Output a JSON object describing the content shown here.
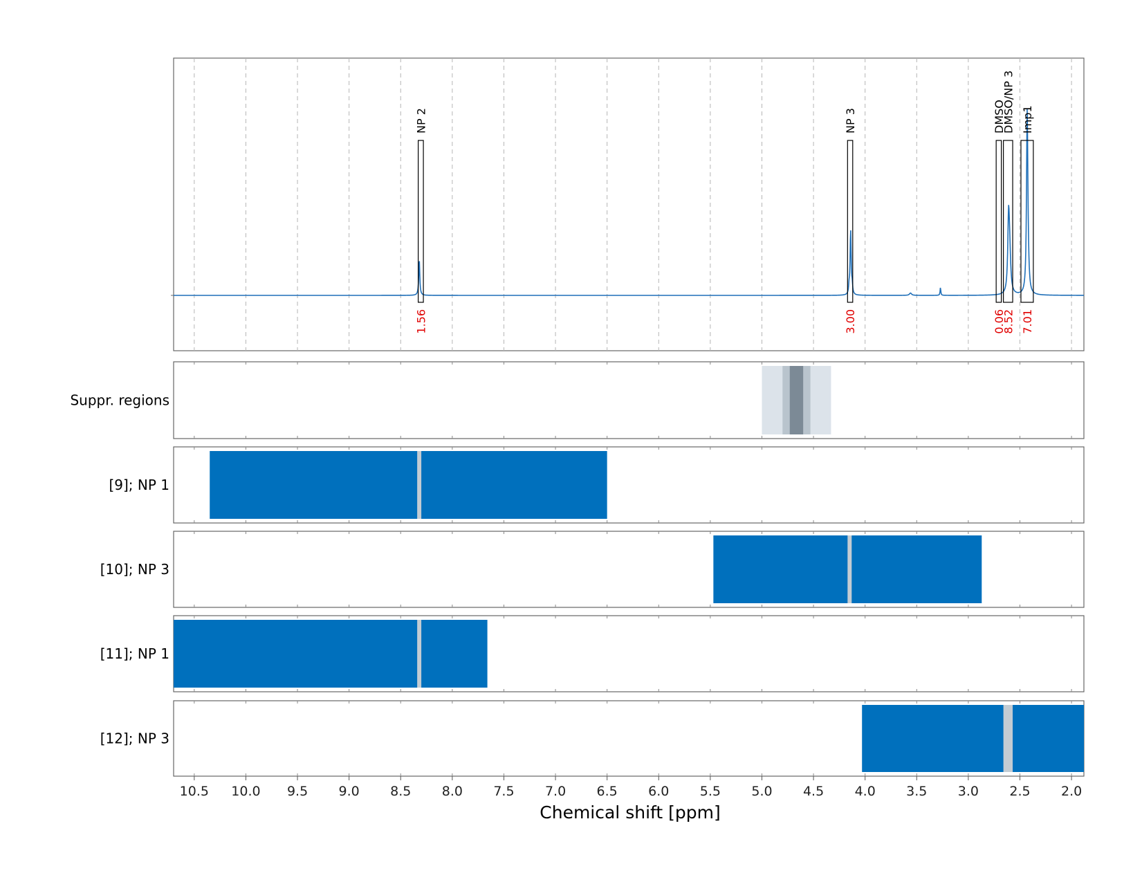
{
  "chart_data": {
    "type": "line",
    "xlabel": "Chemical shift [ppm]",
    "xlim": [
      10.7,
      1.88
    ],
    "x_reversed": true,
    "x_ticks": [
      10.5,
      10.0,
      9.5,
      9.0,
      8.5,
      8.0,
      7.5,
      7.0,
      6.5,
      6.0,
      5.5,
      5.0,
      4.5,
      4.0,
      3.5,
      3.0,
      2.5,
      2.0
    ],
    "x_tick_labels": [
      "10.5",
      "10.0",
      "9.5",
      "9.0",
      "8.5",
      "8.0",
      "7.5",
      "7.0",
      "6.5",
      "6.0",
      "5.5",
      "5.0",
      "4.5",
      "4.0",
      "3.5",
      "3.0",
      "2.5",
      "2.0"
    ],
    "grid": true,
    "line_color": "#1f6fb8",
    "spectrum_peaks": [
      {
        "x": 8.32,
        "height": 0.23,
        "width": 0.006
      },
      {
        "x": 4.14,
        "height": 0.41,
        "width": 0.006
      },
      {
        "x": 4.125,
        "height": 0.05,
        "width": 0.005
      },
      {
        "x": 4.155,
        "height": 0.05,
        "width": 0.005
      },
      {
        "x": 3.56,
        "height": 0.015,
        "width": 0.012
      },
      {
        "x": 3.27,
        "height": 0.05,
        "width": 0.004
      },
      {
        "x": 2.61,
        "height": 0.42,
        "width": 0.009
      },
      {
        "x": 2.6,
        "height": 0.25,
        "width": 0.012
      },
      {
        "x": 2.43,
        "height": 0.94,
        "width": 0.007
      },
      {
        "x": 2.425,
        "height": 0.3,
        "width": 0.01
      }
    ],
    "annotations": [
      {
        "label": "NP 2",
        "integral": "1.56",
        "from": 8.33,
        "to": 8.28,
        "box_top": 0.95
      },
      {
        "label": "NP 3",
        "integral": "3.00",
        "from": 4.17,
        "to": 4.12,
        "box_top": 0.95
      },
      {
        "label": "DMSO",
        "integral": "0.06",
        "from": 2.73,
        "to": 2.68,
        "box_top": 0.95
      },
      {
        "label": "DMSO/NP 3",
        "integral": "8.52",
        "from": 2.66,
        "to": 2.57,
        "box_top": 0.95
      },
      {
        "label": "Imp1",
        "integral": "7.01",
        "from": 2.49,
        "to": 2.37,
        "box_top": 0.95
      }
    ],
    "region_rows": [
      {
        "label": "Suppr. regions",
        "type": "suppression",
        "bands": [
          {
            "from": 5.0,
            "to": 4.33,
            "color": "#dce3ea"
          },
          {
            "from": 4.8,
            "to": 4.53,
            "color": "#b9c4cd"
          },
          {
            "from": 4.73,
            "to": 4.6,
            "color": "#7c8a96"
          }
        ]
      },
      {
        "label": "[9]; NP 1",
        "type": "region",
        "bands": [
          {
            "from": 10.35,
            "to": 6.5,
            "color": "#0070bd"
          }
        ],
        "marker": {
          "from": 8.34,
          "to": 8.3,
          "color": "#c3ccd3"
        }
      },
      {
        "label": "[10]; NP 3",
        "type": "region",
        "bands": [
          {
            "from": 5.47,
            "to": 2.87,
            "color": "#0070bd"
          }
        ],
        "marker": {
          "from": 4.17,
          "to": 4.13,
          "color": "#c3ccd3"
        }
      },
      {
        "label": "[11]; NP 1",
        "type": "region",
        "bands": [
          {
            "from": 10.7,
            "to": 7.66,
            "color": "#0070bd"
          }
        ],
        "marker": {
          "from": 8.34,
          "to": 8.3,
          "color": "#c3ccd3"
        }
      },
      {
        "label": "[12]; NP 3",
        "type": "region",
        "bands": [
          {
            "from": 4.03,
            "to": 1.88,
            "color": "#0070bd"
          }
        ],
        "marker": {
          "from": 2.66,
          "to": 2.57,
          "color": "#c3ccd3"
        }
      }
    ]
  }
}
